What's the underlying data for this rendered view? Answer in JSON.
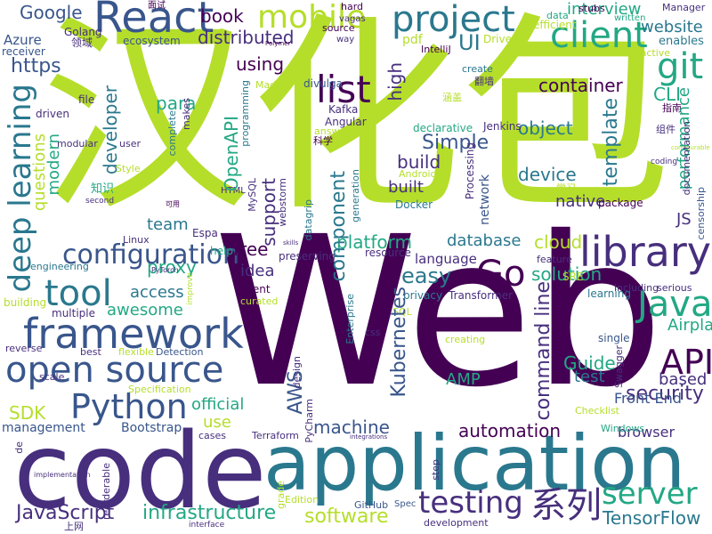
{
  "word_cloud": {
    "background": "#ffffff",
    "palette": {
      "c0": "#440154",
      "c1": "#472f7d",
      "c2": "#39568c",
      "c3": "#2a788e",
      "c4": "#23a884",
      "c5": "#7ad151",
      "c6": "#b5de2b",
      "c7": "#fde725"
    },
    "words": [
      {
        "text": "Web",
        "size": "large",
        "color": "c0"
      },
      {
        "text": "汉化包",
        "size": "large",
        "color": "c6"
      },
      {
        "text": "code",
        "size": "large",
        "color": "c1"
      },
      {
        "text": "application",
        "size": "large",
        "color": "c3"
      },
      {
        "text": "framework",
        "size": "medium",
        "color": "c2"
      },
      {
        "text": "open source",
        "size": "medium",
        "color": "c2"
      },
      {
        "text": "React",
        "size": "medium",
        "color": "c2"
      },
      {
        "text": "library",
        "size": "medium",
        "color": "c1"
      },
      {
        "text": "Python",
        "size": "medium",
        "color": "c2"
      },
      {
        "text": "tool",
        "size": "medium",
        "color": "c3"
      },
      {
        "text": "client",
        "size": "medium",
        "color": "c4"
      },
      {
        "text": "project",
        "size": "medium",
        "color": "c3"
      },
      {
        "text": "mobile",
        "size": "medium",
        "color": "c6"
      },
      {
        "text": "list",
        "size": "medium",
        "color": "c0"
      },
      {
        "text": "git",
        "size": "medium",
        "color": "c4"
      },
      {
        "text": "API",
        "size": "medium",
        "color": "c0"
      },
      {
        "text": "Java",
        "size": "medium",
        "color": "c4"
      },
      {
        "text": "Go",
        "size": "medium",
        "color": "c0"
      },
      {
        "text": "testing",
        "size": "medium",
        "color": "c1"
      },
      {
        "text": "server",
        "size": "medium",
        "color": "c4"
      },
      {
        "text": "系列",
        "size": "medium",
        "color": "c1"
      },
      {
        "text": "deep learning",
        "size": "medium",
        "color": "c3"
      },
      {
        "text": "configuration",
        "size": "medium",
        "color": "c2"
      },
      {
        "text": "Kubernetes",
        "size": "small",
        "color": "c2"
      },
      {
        "text": "command line",
        "size": "small",
        "color": "c1"
      },
      {
        "text": "component",
        "size": "small",
        "color": "c3"
      },
      {
        "text": "performance",
        "size": "small",
        "color": "c4"
      },
      {
        "text": "infrastructure",
        "size": "small",
        "color": "c4"
      },
      {
        "text": "JavaScript",
        "size": "small",
        "color": "c1"
      },
      {
        "text": "software",
        "size": "small",
        "color": "c6"
      },
      {
        "text": "security",
        "size": "small",
        "color": "c1"
      },
      {
        "text": "automation",
        "size": "small",
        "color": "c0"
      },
      {
        "text": "machine",
        "size": "small",
        "color": "c2"
      },
      {
        "text": "platform",
        "size": "small",
        "color": "c4"
      },
      {
        "text": "container",
        "size": "small",
        "color": "c0"
      },
      {
        "text": "interview",
        "size": "small",
        "color": "c4"
      },
      {
        "text": "website",
        "size": "small",
        "color": "c3"
      },
      {
        "text": "Google",
        "size": "small",
        "color": "c2"
      },
      {
        "text": "book",
        "size": "small",
        "color": "c0"
      },
      {
        "text": "distributed",
        "size": "small",
        "color": "c1"
      },
      {
        "text": "https",
        "size": "small",
        "color": "c2"
      },
      {
        "text": "using",
        "size": "small",
        "color": "c0"
      },
      {
        "text": "para",
        "size": "small",
        "color": "c4"
      },
      {
        "text": "high",
        "size": "small",
        "color": "c1"
      },
      {
        "text": "UI",
        "size": "small",
        "color": "c3"
      },
      {
        "text": "developer",
        "size": "small",
        "color": "c3"
      },
      {
        "text": "modern",
        "size": "small",
        "color": "c4"
      },
      {
        "text": "questions",
        "size": "small",
        "color": "c6"
      },
      {
        "text": "OpenAPI",
        "size": "small",
        "color": "c4"
      },
      {
        "text": "support",
        "size": "small",
        "color": "c1"
      },
      {
        "text": "free",
        "size": "small",
        "color": "c0"
      },
      {
        "text": "team",
        "size": "small",
        "color": "c3"
      },
      {
        "text": "proxy",
        "size": "small",
        "color": "c4"
      },
      {
        "text": "access",
        "size": "small",
        "color": "c3"
      },
      {
        "text": "awesome",
        "size": "small",
        "color": "c4"
      },
      {
        "text": "idea",
        "size": "small",
        "color": "c1"
      },
      {
        "text": "easy",
        "size": "small",
        "color": "c3"
      },
      {
        "text": "database",
        "size": "small",
        "color": "c3"
      },
      {
        "text": "cloud",
        "size": "small",
        "color": "c6"
      },
      {
        "text": "solution",
        "size": "small",
        "color": "c4"
      },
      {
        "text": "object",
        "size": "small",
        "color": "c3"
      },
      {
        "text": "device",
        "size": "small",
        "color": "c3"
      },
      {
        "text": "Simple",
        "size": "small",
        "color": "c2"
      },
      {
        "text": "build",
        "size": "small",
        "color": "c1"
      },
      {
        "text": "built",
        "size": "small",
        "color": "c1"
      },
      {
        "text": "template",
        "size": "small",
        "color": "c3"
      },
      {
        "text": "CLI",
        "size": "small",
        "color": "c4"
      },
      {
        "text": "JS",
        "size": "small",
        "color": "c1"
      },
      {
        "text": "Airplay",
        "size": "small",
        "color": "c4"
      },
      {
        "text": "Guide",
        "size": "small",
        "color": "c4"
      },
      {
        "text": "test",
        "size": "small",
        "color": "c3"
      },
      {
        "text": "based",
        "size": "small",
        "color": "c1"
      },
      {
        "text": "Front End",
        "size": "small",
        "color": "c2"
      },
      {
        "text": "SDK",
        "size": "small",
        "color": "c6"
      },
      {
        "text": "AMP",
        "size": "small",
        "color": "c4"
      },
      {
        "text": "AWS",
        "size": "small",
        "color": "c2"
      },
      {
        "text": "official",
        "size": "small",
        "color": "c4"
      },
      {
        "text": "use",
        "size": "small",
        "color": "c6"
      },
      {
        "text": "TensorFlow",
        "size": "small",
        "color": "c3"
      },
      {
        "text": "native",
        "size": "small",
        "color": "c1"
      },
      {
        "text": "network",
        "size": "small",
        "color": "c2"
      },
      {
        "text": "language",
        "size": "small",
        "color": "c1"
      },
      {
        "text": "browser",
        "size": "small",
        "color": "c1"
      },
      {
        "text": "management",
        "size": "small",
        "color": "c2"
      },
      {
        "text": "Bootstrap",
        "size": "small",
        "color": "c2"
      },
      {
        "text": "Azure",
        "size": "small",
        "color": "c2"
      },
      {
        "text": "receiver",
        "size": "small",
        "color": "c2"
      },
      {
        "text": "Golang",
        "size": "small",
        "color": "c1"
      },
      {
        "text": "领域",
        "size": "small",
        "color": "c1"
      },
      {
        "text": "ecosystem",
        "size": "small",
        "color": "c2"
      },
      {
        "text": "面试",
        "size": "small",
        "color": "c0"
      },
      {
        "text": "hard",
        "size": "small",
        "color": "c0"
      },
      {
        "text": "vagas",
        "size": "small",
        "color": "c1"
      },
      {
        "text": "source",
        "size": "small",
        "color": "c0"
      },
      {
        "text": "way",
        "size": "small",
        "color": "c1"
      },
      {
        "text": "Polymer",
        "size": "small",
        "color": "c0"
      },
      {
        "text": "pdf",
        "size": "small",
        "color": "c6"
      },
      {
        "text": "IntelliJ",
        "size": "small",
        "color": "c0"
      },
      {
        "text": "Driver",
        "size": "small",
        "color": "c6"
      },
      {
        "text": "data",
        "size": "small",
        "color": "c4"
      },
      {
        "text": "efficient",
        "size": "small",
        "color": "c6"
      },
      {
        "text": "stubs",
        "size": "small",
        "color": "c0"
      },
      {
        "text": "written",
        "size": "small",
        "color": "c4"
      },
      {
        "text": "Manager",
        "size": "small",
        "color": "c1"
      },
      {
        "text": "enables",
        "size": "small",
        "color": "c3"
      },
      {
        "text": "interactive",
        "size": "small",
        "color": "c6"
      },
      {
        "text": "Automate",
        "size": "small",
        "color": "c6"
      },
      {
        "text": "create",
        "size": "small",
        "color": "c3"
      },
      {
        "text": "翻墙",
        "size": "small",
        "color": "c1"
      },
      {
        "text": "涵盖",
        "size": "small",
        "color": "c6"
      },
      {
        "text": "指南",
        "size": "small",
        "color": "c0"
      },
      {
        "text": "组件",
        "size": "small",
        "color": "c1"
      },
      {
        "text": "coding",
        "size": "small",
        "color": "c1"
      },
      {
        "text": "documentation",
        "size": "small",
        "color": "c1"
      },
      {
        "text": "censorship",
        "size": "small",
        "color": "c2"
      },
      {
        "text": "Made",
        "size": "small",
        "color": "c6"
      },
      {
        "text": "divulga",
        "size": "small",
        "color": "c2"
      },
      {
        "text": "Kafka",
        "size": "small",
        "color": "c1"
      },
      {
        "text": "Angular",
        "size": "small",
        "color": "c1"
      },
      {
        "text": "answers",
        "size": "small",
        "color": "c6"
      },
      {
        "text": "科学",
        "size": "small",
        "color": "c0"
      },
      {
        "text": "declarative",
        "size": "small",
        "color": "c4"
      },
      {
        "text": "Processing",
        "size": "small",
        "color": "c1"
      },
      {
        "text": "Jenkins",
        "size": "small",
        "color": "c1"
      },
      {
        "text": "Android",
        "size": "small",
        "color": "c6"
      },
      {
        "text": "generation",
        "size": "small",
        "color": "c3"
      },
      {
        "text": "Docker",
        "size": "small",
        "color": "c3"
      },
      {
        "text": "学习",
        "size": "small",
        "color": "c6"
      },
      {
        "text": "package",
        "size": "small",
        "color": "c0"
      },
      {
        "text": "driven",
        "size": "small",
        "color": "c1"
      },
      {
        "text": "file",
        "size": "small",
        "color": "c1"
      },
      {
        "text": "makes",
        "size": "small",
        "color": "c1"
      },
      {
        "text": "complete",
        "size": "small",
        "color": "c3"
      },
      {
        "text": "modular",
        "size": "small",
        "color": "c1"
      },
      {
        "text": "user",
        "size": "small",
        "color": "c1"
      },
      {
        "text": "Style",
        "size": "small",
        "color": "c6"
      },
      {
        "text": "知识",
        "size": "small",
        "color": "c4"
      },
      {
        "text": "second",
        "size": "small",
        "color": "c1"
      },
      {
        "text": "可用",
        "size": "small",
        "color": "c0"
      },
      {
        "text": "HTML",
        "size": "small",
        "color": "c1"
      },
      {
        "text": "MySQL",
        "size": "small",
        "color": "c1"
      },
      {
        "text": "webstorm",
        "size": "small",
        "color": "c1"
      },
      {
        "text": "programming",
        "size": "small",
        "color": "c3"
      },
      {
        "text": "Linux",
        "size": "small",
        "color": "c1"
      },
      {
        "text": "Espa",
        "size": "small",
        "color": "c1"
      },
      {
        "text": "help",
        "size": "small",
        "color": "c4"
      },
      {
        "text": "skills",
        "size": "small",
        "color": "c1"
      },
      {
        "text": "datagrip",
        "size": "small",
        "color": "c3"
      },
      {
        "text": "preserving",
        "size": "small",
        "color": "c1"
      },
      {
        "text": "resource",
        "size": "small",
        "color": "c1"
      },
      {
        "text": "feature",
        "size": "small",
        "color": "c1"
      },
      {
        "text": "SRE",
        "size": "small",
        "color": "c6"
      },
      {
        "text": "learning",
        "size": "small",
        "color": "c3"
      },
      {
        "text": "including",
        "size": "small",
        "color": "c1"
      },
      {
        "text": "serious",
        "size": "small",
        "color": "c1"
      },
      {
        "text": "PyTorch",
        "size": "small",
        "color": "c1"
      },
      {
        "text": "engineering",
        "size": "small",
        "color": "c3"
      },
      {
        "text": "building",
        "size": "small",
        "color": "c6"
      },
      {
        "text": "multiple",
        "size": "small",
        "color": "c1"
      },
      {
        "text": "improve",
        "size": "small",
        "color": "c6"
      },
      {
        "text": "Agent",
        "size": "small",
        "color": "c0"
      },
      {
        "text": "curated",
        "size": "small",
        "color": "c6"
      },
      {
        "text": "privacy",
        "size": "small",
        "color": "c3"
      },
      {
        "text": "Transformer",
        "size": "small",
        "color": "c1"
      },
      {
        "text": "Enterprise",
        "size": "small",
        "color": "c3"
      },
      {
        "text": "SQL",
        "size": "small",
        "color": "c6"
      },
      {
        "text": "single",
        "size": "small",
        "color": "c2"
      },
      {
        "text": "reverse",
        "size": "small",
        "color": "c1"
      },
      {
        "text": "best",
        "size": "small",
        "color": "c1"
      },
      {
        "text": "flexible",
        "size": "small",
        "color": "c6"
      },
      {
        "text": "Detection",
        "size": "small",
        "color": "c2"
      },
      {
        "text": "design",
        "size": "small",
        "color": "c1"
      },
      {
        "text": "css",
        "size": "small",
        "color": "c1"
      },
      {
        "text": "creating",
        "size": "small",
        "color": "c6"
      },
      {
        "text": "Swagger",
        "size": "small",
        "color": "c1"
      },
      {
        "text": "scale",
        "size": "small",
        "color": "c1"
      },
      {
        "text": "Specification",
        "size": "small",
        "color": "c6"
      },
      {
        "text": "PyCharm",
        "size": "small",
        "color": "c1"
      },
      {
        "text": "Checklist",
        "size": "small",
        "color": "c6"
      },
      {
        "text": "Terraform",
        "size": "small",
        "color": "c1"
      },
      {
        "text": "cases",
        "size": "small",
        "color": "c1"
      },
      {
        "text": "Windows",
        "size": "small",
        "color": "c4"
      },
      {
        "text": "de",
        "size": "small",
        "color": "c1"
      },
      {
        "text": "implementation",
        "size": "small",
        "color": "c1"
      },
      {
        "text": "reorderable",
        "size": "small",
        "color": "c1"
      },
      {
        "text": "grade",
        "size": "small",
        "color": "c6"
      },
      {
        "text": "Edition",
        "size": "small",
        "color": "c6"
      },
      {
        "text": "step",
        "size": "small",
        "color": "c1"
      },
      {
        "text": "GitHub",
        "size": "small",
        "color": "c2"
      },
      {
        "text": "Spec",
        "size": "small",
        "color": "c2"
      },
      {
        "text": "上网",
        "size": "small",
        "color": "c1"
      },
      {
        "text": "interface",
        "size": "small",
        "color": "c1"
      },
      {
        "text": "development",
        "size": "small",
        "color": "c1"
      },
      {
        "text": "integrations",
        "size": "small",
        "color": "c1"
      },
      {
        "text": "configurable",
        "size": "small",
        "color": "c6"
      },
      {
        "text": "provided",
        "size": "small",
        "color": "c6"
      }
    ]
  }
}
